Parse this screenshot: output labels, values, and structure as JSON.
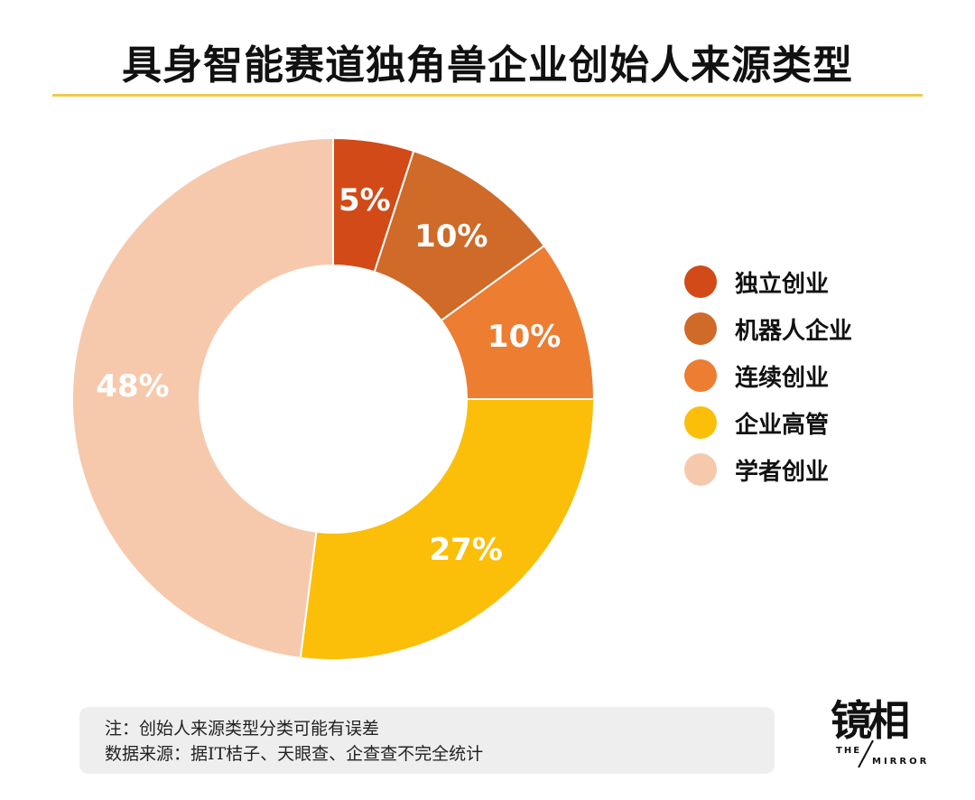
{
  "title": "具身智能赛道独角兽企业创始人来源类型",
  "chart_data": {
    "type": "pie",
    "title": "具身智能赛道独角兽企业创始人来源类型",
    "categories": [
      "独立创业",
      "机器人企业",
      "连续创业",
      "企业高管",
      "学者创业"
    ],
    "values": [
      5,
      10,
      10,
      27,
      48
    ],
    "value_labels": [
      "5%",
      "10%",
      "10%",
      "27%",
      "48%"
    ],
    "colors": [
      "#d24a17",
      "#cf6a28",
      "#ec7d31",
      "#fbbf09",
      "#f6c9ad"
    ],
    "donut": true,
    "legend": "right"
  },
  "note": {
    "line1": "注：创始人来源类型分类可能有误差",
    "line2": "数据来源：据IT桔子、天眼查、企查查不完全统计"
  },
  "logo": {
    "main": "镜相",
    "sub_a": "THE",
    "sub_b": "MIRROR"
  }
}
